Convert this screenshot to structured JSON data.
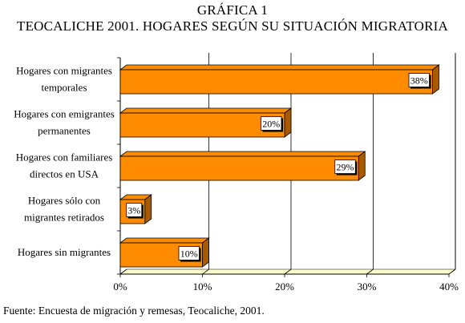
{
  "chart_data": {
    "type": "bar",
    "orientation": "horizontal",
    "title": "GRÁFICA 1",
    "subtitle": "TEOCALICHE 2001. HOGARES SEGÚN SU SITUACIÓN MIGRATORIA",
    "categories": [
      [
        "Hogares con migrantes",
        "temporales"
      ],
      [
        "Hogares con emigrantes",
        "permanentes"
      ],
      [
        "Hogares con familiares",
        "directos en USA"
      ],
      [
        "Hogares sólo con",
        "migrantes retirados"
      ],
      [
        "Hogares sin migrantes"
      ]
    ],
    "values": [
      38,
      20,
      29,
      3,
      10
    ],
    "value_labels": [
      "38%",
      "20%",
      "29%",
      "3%",
      "10%"
    ],
    "xlim": [
      0,
      40
    ],
    "x_ticks": [
      "0%",
      "10%",
      "20%",
      "30%",
      "40%"
    ],
    "grid": true,
    "bar_color": "#ff8c00",
    "bar_side_color": "#a85a00",
    "floor_color": "#ffffcc"
  },
  "source": "Fuente: Encuesta de migración y remesas, Teocaliche, 2001."
}
